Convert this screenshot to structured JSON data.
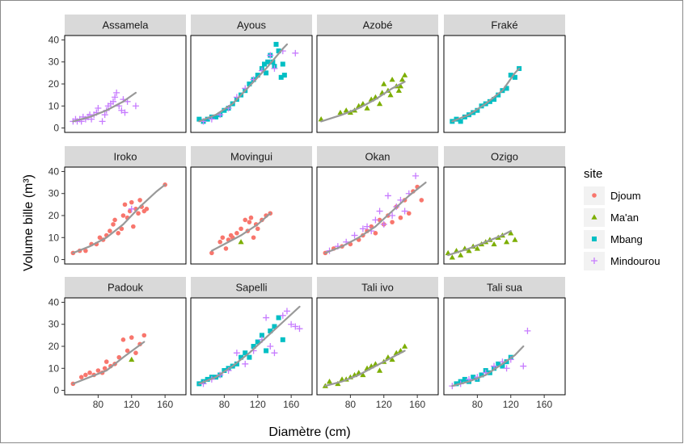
{
  "chart_data": {
    "type": "scatter",
    "xlabel": "Diamètre (cm)",
    "ylabel": "Volume bille (m³)",
    "xlim": [
      40,
      185
    ],
    "ylim": [
      -2,
      42
    ],
    "x_ticks": [
      80,
      120,
      160
    ],
    "y_ticks": [
      0,
      10,
      20,
      30,
      40
    ],
    "grid": false,
    "fit_line_color": "#999999",
    "legend": {
      "title": "site",
      "position": "right",
      "entries": [
        {
          "label": "Djoum",
          "color": "#F8766D",
          "marker": "circle"
        },
        {
          "label": "Ma'an",
          "color": "#7CAE00",
          "marker": "triangle"
        },
        {
          "label": "Mbang",
          "color": "#00BFC4",
          "marker": "square"
        },
        {
          "label": "Mindourou",
          "color": "#C77CFF",
          "marker": "plus"
        }
      ]
    },
    "panels": [
      {
        "name": "Assamela",
        "fit": [
          [
            50,
            3
          ],
          [
            70,
            5
          ],
          [
            90,
            8
          ],
          [
            110,
            12
          ],
          [
            125,
            16
          ]
        ],
        "points": [
          {
            "site": "Mindourou",
            "x": [
              50,
              53,
              55,
              58,
              60,
              62,
              65,
              68,
              70,
              72,
              75,
              78,
              80,
              85,
              88,
              90,
              92,
              95,
              98,
              100,
              102,
              105,
              108,
              110,
              112,
              115,
              125
            ],
            "y": [
              3,
              4,
              3,
              4,
              3,
              5,
              4,
              5,
              6,
              4,
              6,
              7,
              9,
              3,
              6,
              8,
              10,
              11,
              12,
              14,
              16,
              10,
              8,
              13,
              7,
              12,
              10
            ]
          }
        ]
      },
      {
        "name": "Ayous",
        "fit": [
          [
            50,
            3
          ],
          [
            70,
            6
          ],
          [
            90,
            11
          ],
          [
            110,
            19
          ],
          [
            130,
            27
          ],
          [
            150,
            36
          ],
          [
            155,
            38
          ]
        ],
        "points": [
          {
            "site": "Mbang",
            "x": [
              50,
              55,
              60,
              65,
              70,
              75,
              80,
              85,
              90,
              95,
              100,
              105,
              110,
              115,
              120,
              125,
              128,
              130,
              132,
              135,
              138,
              140,
              142,
              145,
              148,
              150,
              152
            ],
            "y": [
              4,
              3,
              4,
              5,
              5,
              6,
              8,
              9,
              11,
              13,
              15,
              17,
              20,
              22,
              24,
              27,
              29,
              25,
              30,
              33,
              30,
              28,
              38,
              35,
              23,
              29,
              24
            ]
          },
          {
            "site": "Mindourou",
            "x": [
              55,
              65,
              75,
              85,
              95,
              105,
              115,
              125,
              135,
              140,
              150,
              165
            ],
            "y": [
              3,
              4,
              6,
              9,
              14,
              18,
              22,
              26,
              33,
              27,
              35,
              34
            ]
          }
        ]
      },
      {
        "name": "Azobé",
        "fit": [
          [
            45,
            3
          ],
          [
            70,
            6
          ],
          [
            90,
            9
          ],
          [
            110,
            13
          ],
          [
            130,
            18
          ],
          [
            145,
            21
          ]
        ],
        "points": [
          {
            "site": "Ma'an",
            "x": [
              45,
              68,
              75,
              80,
              85,
              90,
              95,
              100,
              105,
              110,
              115,
              118,
              120,
              125,
              128,
              130,
              135,
              138,
              140,
              142,
              145
            ],
            "y": [
              4,
              7,
              8,
              7,
              8,
              10,
              11,
              9,
              13,
              14,
              11,
              16,
              20,
              17,
              15,
              22,
              19,
              17,
              19,
              22,
              24
            ]
          }
        ]
      },
      {
        "name": "Fraké",
        "fit": [
          [
            50,
            3
          ],
          [
            70,
            6
          ],
          [
            90,
            11
          ],
          [
            110,
            17
          ],
          [
            125,
            25
          ],
          [
            130,
            27
          ]
        ],
        "points": [
          {
            "site": "Mbang",
            "x": [
              50,
              55,
              60,
              65,
              70,
              75,
              80,
              85,
              90,
              95,
              100,
              105,
              110,
              115,
              120,
              125,
              130
            ],
            "y": [
              3,
              4,
              3,
              5,
              6,
              7,
              8,
              10,
              11,
              12,
              13,
              15,
              17,
              18,
              24,
              23,
              27
            ]
          }
        ]
      },
      {
        "name": "Iroko",
        "fit": [
          [
            50,
            3
          ],
          [
            70,
            6
          ],
          [
            90,
            10
          ],
          [
            110,
            16
          ],
          [
            130,
            24
          ],
          [
            150,
            31
          ],
          [
            160,
            34
          ]
        ],
        "points": [
          {
            "site": "Djoum",
            "x": [
              50,
              58,
              65,
              72,
              78,
              82,
              86,
              90,
              94,
              98,
              100,
              104,
              108,
              110,
              112,
              115,
              118,
              120,
              122,
              125,
              128,
              130,
              132,
              135,
              138,
              160
            ],
            "y": [
              3,
              4,
              4,
              7,
              7,
              10,
              9,
              11,
              13,
              16,
              18,
              12,
              14,
              20,
              25,
              19,
              22,
              26,
              15,
              23,
              21,
              27,
              24,
              22,
              23,
              34
            ]
          },
          {
            "site": "Mindourou",
            "x": [
              120
            ],
            "y": [
              23
            ]
          }
        ]
      },
      {
        "name": "Movingui",
        "fit": [
          [
            65,
            4
          ],
          [
            80,
            7
          ],
          [
            100,
            11
          ],
          [
            120,
            16
          ],
          [
            135,
            21
          ]
        ],
        "points": [
          {
            "site": "Djoum",
            "x": [
              65,
              75,
              78,
              82,
              85,
              88,
              90,
              95,
              100,
              105,
              108,
              110,
              112,
              115,
              118,
              120,
              125,
              130,
              135
            ],
            "y": [
              3,
              8,
              10,
              5,
              9,
              11,
              10,
              12,
              14,
              18,
              13,
              17,
              19,
              10,
              16,
              14,
              18,
              20,
              21
            ]
          },
          {
            "site": "Ma'an",
            "x": [
              100
            ],
            "y": [
              8
            ]
          }
        ]
      },
      {
        "name": "Okan",
        "fit": [
          [
            50,
            3
          ],
          [
            70,
            6
          ],
          [
            90,
            10
          ],
          [
            110,
            15
          ],
          [
            130,
            22
          ],
          [
            150,
            29
          ],
          [
            170,
            35
          ]
        ],
        "points": [
          {
            "site": "Djoum",
            "x": [
              50,
              60,
              70,
              80,
              90,
              95,
              100,
              105,
              110,
              115,
              120,
              125,
              130,
              135,
              140,
              145,
              150,
              155,
              160,
              165
            ],
            "y": [
              3,
              5,
              6,
              7,
              9,
              11,
              13,
              15,
              12,
              18,
              16,
              20,
              17,
              24,
              19,
              27,
              21,
              31,
              33,
              27
            ]
          },
          {
            "site": "Mindourou",
            "x": [
              55,
              65,
              75,
              85,
              95,
              100,
              105,
              110,
              115,
              120,
              125,
              130,
              135,
              140,
              145,
              150,
              158
            ],
            "y": [
              4,
              6,
              8,
              11,
              14,
              15,
              13,
              18,
              22,
              16,
              29,
              20,
              24,
              27,
              22,
              30,
              38
            ]
          }
        ]
      },
      {
        "name": "Ozigo",
        "fit": [
          [
            45,
            2
          ],
          [
            70,
            5
          ],
          [
            90,
            8
          ],
          [
            110,
            11
          ],
          [
            120,
            13
          ]
        ],
        "points": [
          {
            "site": "Ma'an",
            "x": [
              45,
              50,
              55,
              60,
              65,
              70,
              75,
              80,
              85,
              90,
              95,
              100,
              105,
              110,
              115,
              120,
              125
            ],
            "y": [
              3,
              1,
              4,
              2,
              5,
              4,
              6,
              5,
              7,
              8,
              9,
              7,
              10,
              11,
              8,
              12,
              9
            ]
          }
        ]
      },
      {
        "name": "Padouk",
        "fit": [
          [
            50,
            3
          ],
          [
            70,
            6
          ],
          [
            90,
            9
          ],
          [
            110,
            15
          ],
          [
            135,
            22
          ]
        ],
        "points": [
          {
            "site": "Djoum",
            "x": [
              50,
              60,
              65,
              70,
              75,
              80,
              85,
              88,
              90,
              95,
              100,
              105,
              110,
              115,
              120,
              125,
              130,
              135
            ],
            "y": [
              3,
              6,
              7,
              8,
              7,
              9,
              8,
              10,
              13,
              11,
              12,
              15,
              23,
              18,
              24,
              17,
              21,
              25
            ]
          },
          {
            "site": "Ma'an",
            "x": [
              120
            ],
            "y": [
              14
            ]
          }
        ]
      },
      {
        "name": "Sapelli",
        "fit": [
          [
            50,
            3
          ],
          [
            70,
            6
          ],
          [
            90,
            11
          ],
          [
            110,
            17
          ],
          [
            130,
            24
          ],
          [
            150,
            31
          ],
          [
            170,
            38
          ]
        ],
        "points": [
          {
            "site": "Mbang",
            "x": [
              50,
              55,
              60,
              65,
              70,
              75,
              80,
              85,
              90,
              95,
              100,
              105,
              110,
              115,
              120,
              125,
              130,
              135,
              140,
              145,
              150
            ],
            "y": [
              3,
              4,
              5,
              6,
              6,
              7,
              9,
              10,
              11,
              12,
              15,
              17,
              15,
              20,
              22,
              25,
              18,
              27,
              29,
              33,
              23
            ]
          },
          {
            "site": "Mindourou",
            "x": [
              55,
              65,
              75,
              85,
              95,
              105,
              115,
              125,
              130,
              135,
              140,
              150,
              155,
              160,
              165,
              170
            ],
            "y": [
              3,
              5,
              7,
              9,
              17,
              12,
              18,
              23,
              33,
              20,
              17,
              34,
              36,
              30,
              29,
              28
            ]
          }
        ]
      },
      {
        "name": "Tali ivo",
        "fit": [
          [
            50,
            2
          ],
          [
            70,
            4
          ],
          [
            90,
            7
          ],
          [
            110,
            11
          ],
          [
            130,
            15
          ],
          [
            145,
            18
          ]
        ],
        "points": [
          {
            "site": "Ma'an",
            "x": [
              50,
              55,
              65,
              70,
              75,
              80,
              85,
              90,
              95,
              100,
              105,
              110,
              115,
              120,
              125,
              130,
              135,
              140,
              145
            ],
            "y": [
              2,
              4,
              3,
              5,
              5,
              6,
              7,
              8,
              7,
              10,
              11,
              12,
              9,
              13,
              15,
              14,
              17,
              18,
              20
            ]
          }
        ]
      },
      {
        "name": "Tali sua",
        "fit": [
          [
            50,
            2
          ],
          [
            70,
            4
          ],
          [
            90,
            7
          ],
          [
            110,
            12
          ],
          [
            125,
            16
          ],
          [
            135,
            20
          ]
        ],
        "points": [
          {
            "site": "Mbang",
            "x": [
              55,
              60,
              65,
              70,
              75,
              80,
              85,
              90,
              95,
              100,
              105,
              110,
              115,
              120
            ],
            "y": [
              3,
              4,
              5,
              4,
              6,
              5,
              7,
              9,
              8,
              10,
              12,
              11,
              13,
              15
            ]
          },
          {
            "site": "Mindourou",
            "x": [
              50,
              60,
              70,
              80,
              90,
              100,
              110,
              115,
              120,
              135,
              140
            ],
            "y": [
              2,
              3,
              5,
              6,
              8,
              11,
              13,
              10,
              14,
              11,
              27
            ]
          }
        ]
      }
    ]
  }
}
